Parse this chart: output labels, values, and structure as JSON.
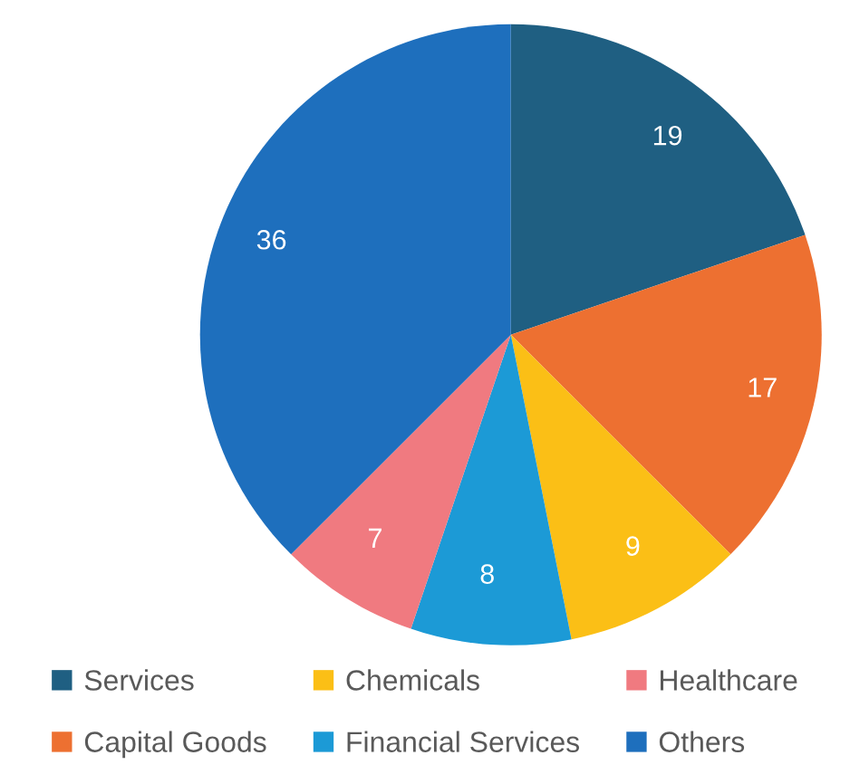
{
  "chart_data": {
    "type": "pie",
    "categories": [
      "Services",
      "Capital Goods",
      "Chemicals",
      "Financial Services",
      "Healthcare",
      "Others"
    ],
    "values": [
      19,
      17,
      9,
      8,
      7,
      36
    ],
    "colors": [
      "#1f5f82",
      "#ed7031",
      "#fbbf16",
      "#1c9ad6",
      "#f07a80",
      "#1e6fbd"
    ],
    "data_labels": true,
    "legend": "bottom"
  }
}
